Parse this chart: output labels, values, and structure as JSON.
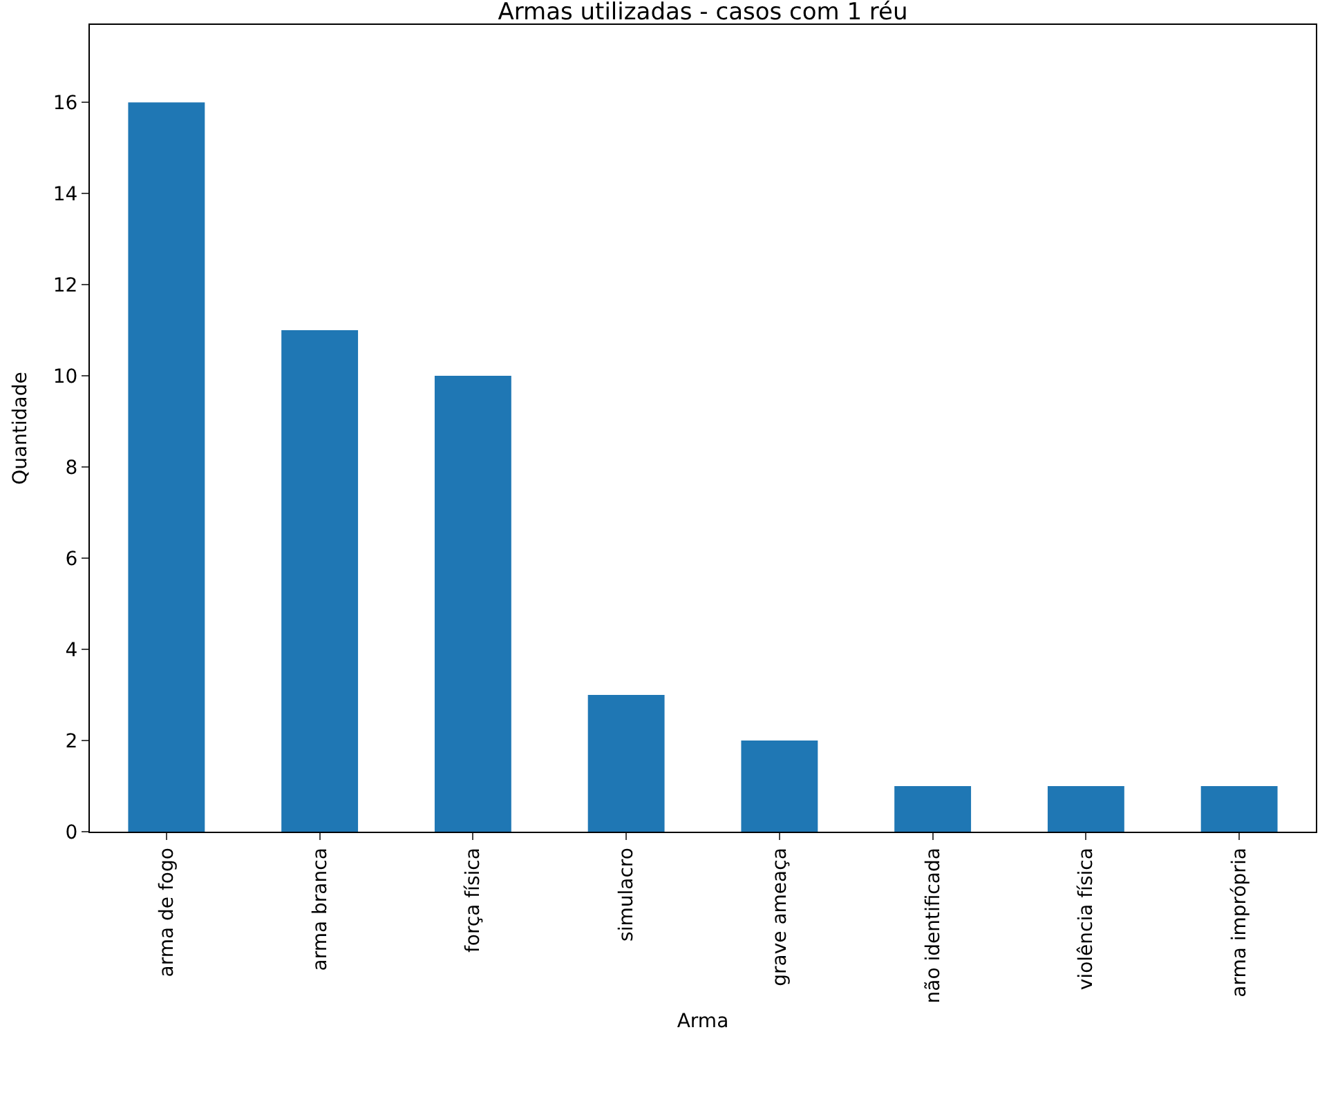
{
  "chart_data": {
    "type": "bar",
    "title": "Armas utilizadas - casos com 1 réu",
    "xlabel": "Arma",
    "ylabel": "Quantidade",
    "categories": [
      "arma de fogo",
      "arma branca",
      "força física",
      "simulacro",
      "grave ameaça",
      "não identificada",
      "violência física",
      "arma imprópria"
    ],
    "values": [
      16,
      11,
      10,
      3,
      2,
      1,
      1,
      1
    ],
    "color": "#1f77b4",
    "ylim": [
      0,
      17.7
    ],
    "yticks": [
      0,
      2,
      4,
      6,
      8,
      10,
      12,
      14,
      16
    ]
  }
}
